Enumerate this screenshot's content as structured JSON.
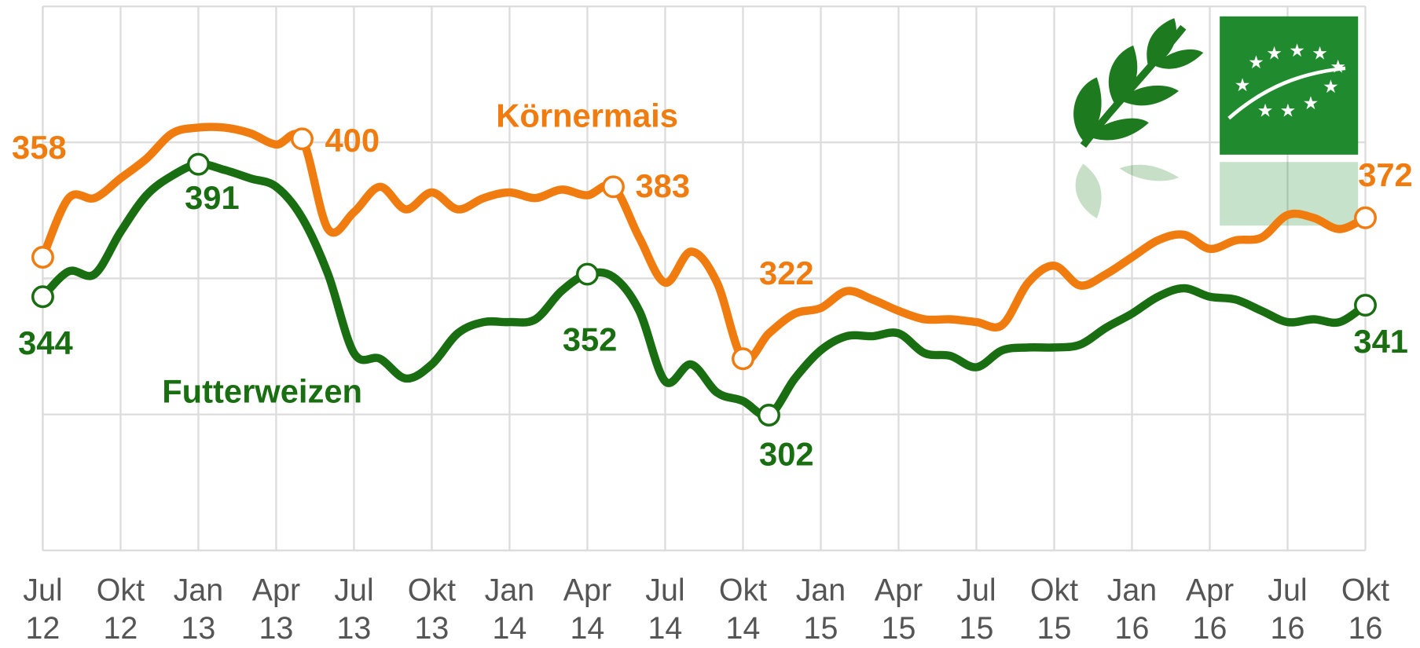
{
  "chart_data": {
    "type": "line",
    "categories": [
      "Jul 12",
      null,
      null,
      "Okt 12",
      null,
      null,
      "Jan 13",
      null,
      null,
      "Apr 13",
      null,
      null,
      "Jul 13",
      null,
      null,
      "Okt 13",
      null,
      null,
      "Jan 14",
      null,
      null,
      "Apr 14",
      null,
      null,
      "Jul 14",
      null,
      null,
      "Okt 14",
      null,
      null,
      "Jan 15",
      null,
      null,
      "Apr 15",
      null,
      null,
      "Jul 15",
      null,
      null,
      "Okt 15",
      null,
      null,
      "Jan 16",
      null,
      null,
      "Apr 16",
      null,
      null,
      "Jul 16",
      null,
      null,
      "Okt 16"
    ],
    "ylim": [
      254,
      447
    ],
    "series": [
      {
        "name": "Körnermais",
        "color": "#f07c10",
        "values": [
          358,
          379,
          379,
          386,
          393,
          402,
          404,
          404,
          402,
          398,
          400,
          368,
          374,
          383,
          375,
          381,
          375,
          379,
          381,
          379,
          382,
          380,
          383,
          365,
          349,
          360,
          349,
          322,
          331,
          338,
          340,
          346,
          343,
          339,
          336,
          336,
          335,
          334,
          349,
          355,
          348,
          352,
          358,
          364,
          366,
          361,
          364,
          365,
          373,
          372,
          368,
          372
        ],
        "value_labels": [
          "358",
          null,
          null,
          null,
          null,
          null,
          null,
          null,
          null,
          null,
          "400",
          null,
          null,
          null,
          null,
          null,
          null,
          null,
          null,
          null,
          null,
          null,
          "383",
          null,
          null,
          null,
          null,
          "322",
          null,
          null,
          null,
          null,
          null,
          null,
          null,
          null,
          null,
          null,
          null,
          null,
          null,
          null,
          null,
          null,
          null,
          null,
          null,
          null,
          null,
          null,
          null,
          "372"
        ]
      },
      {
        "name": "Futterweizen",
        "color": "#1a6e12",
        "values": [
          344,
          353,
          352,
          367,
          380,
          387,
          391,
          389,
          386,
          383,
          372,
          352,
          324,
          322,
          315,
          320,
          331,
          335,
          335,
          336,
          346,
          352,
          351,
          339,
          314,
          320,
          310,
          307,
          302,
          315,
          325,
          330,
          330,
          331,
          324,
          323,
          319,
          325,
          326,
          326,
          327,
          333,
          338,
          344,
          347,
          344,
          343,
          339,
          335,
          336,
          335,
          341
        ],
        "value_labels": [
          "344",
          null,
          null,
          null,
          null,
          null,
          "391",
          null,
          null,
          null,
          null,
          null,
          null,
          null,
          null,
          null,
          null,
          null,
          null,
          null,
          null,
          "352",
          null,
          null,
          null,
          null,
          null,
          null,
          "302",
          null,
          null,
          null,
          null,
          null,
          null,
          null,
          null,
          null,
          null,
          null,
          null,
          null,
          null,
          null,
          null,
          null,
          null,
          null,
          null,
          null,
          null,
          "341"
        ]
      }
    ]
  }
}
